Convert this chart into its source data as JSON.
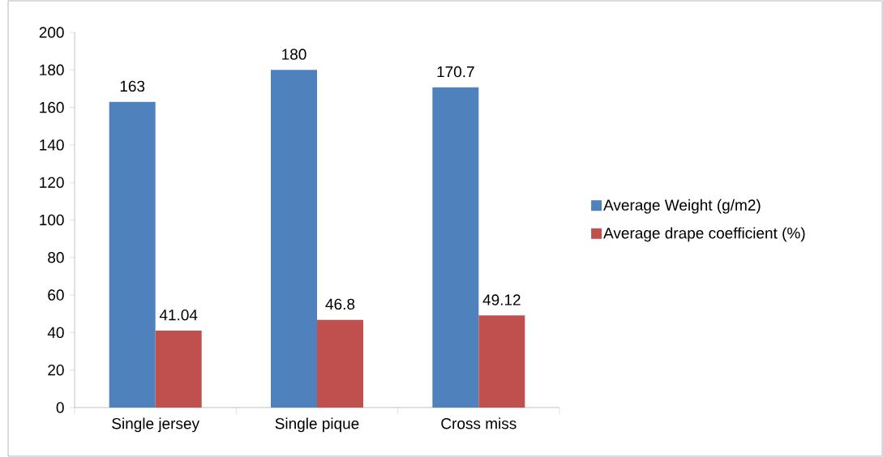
{
  "chart_data": {
    "type": "bar",
    "categories": [
      "Single jersey",
      "Single pique",
      "Cross miss"
    ],
    "series": [
      {
        "name": "Average Weight (g/m2)",
        "color": "#4f81bd",
        "values": [
          163,
          180,
          170.7
        ]
      },
      {
        "name": "Average drape coefficient (%)",
        "color": "#c0504d",
        "values": [
          41.04,
          46.8,
          49.12
        ]
      }
    ],
    "ylim": [
      0,
      200
    ],
    "yticks": [
      0,
      20,
      40,
      60,
      80,
      100,
      120,
      140,
      160,
      180,
      200
    ],
    "data_labels": true,
    "legend": "right",
    "grid": false
  }
}
